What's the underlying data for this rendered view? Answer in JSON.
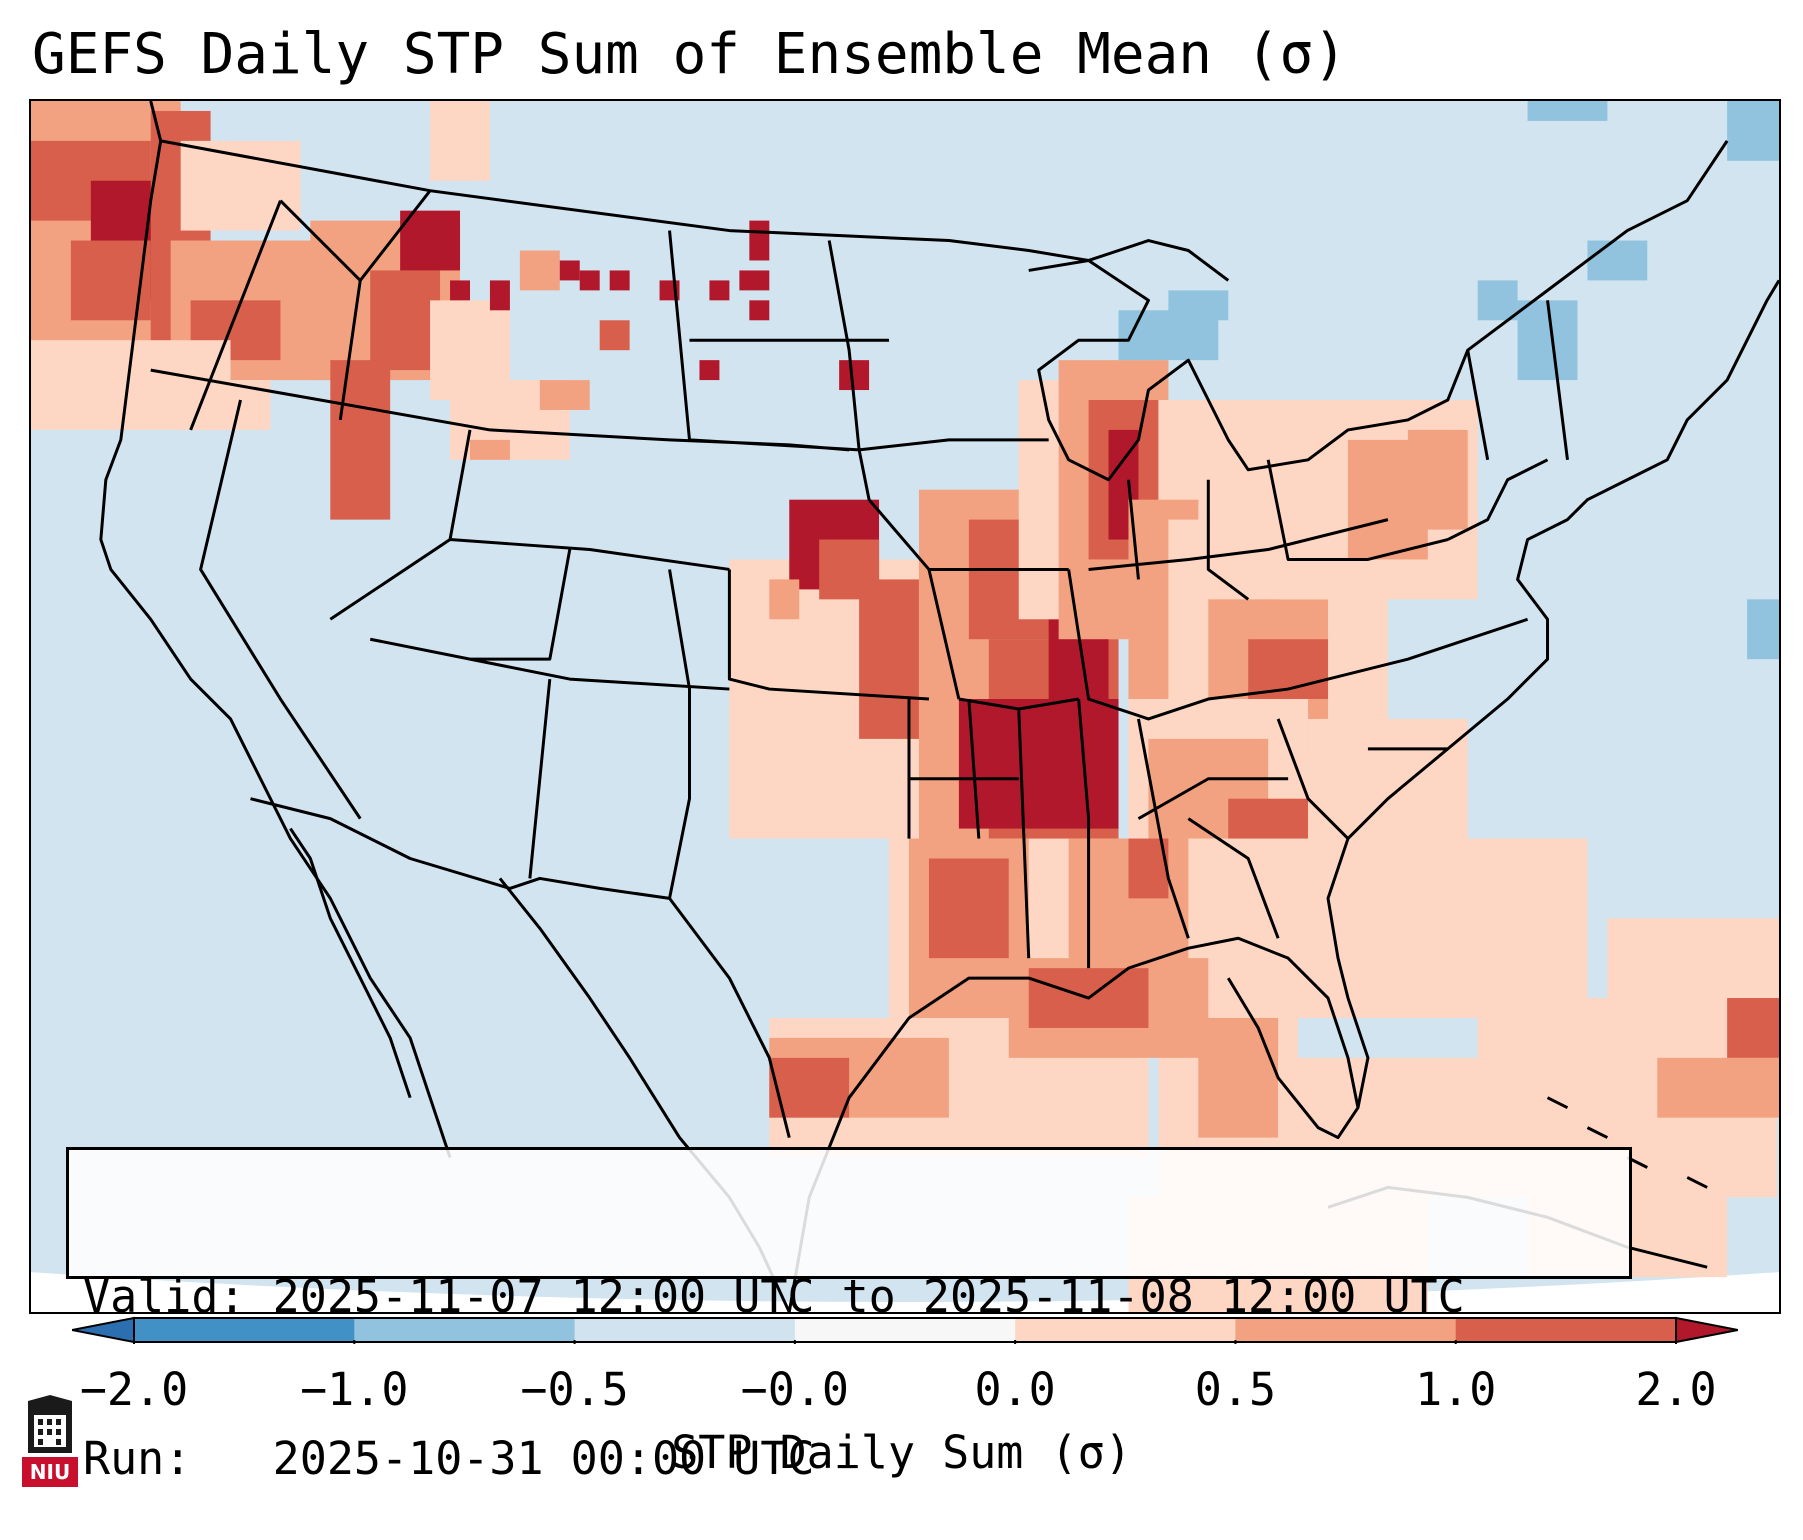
{
  "title": "GEFS Daily STP Sum of Ensemble Mean (σ)",
  "info": {
    "valid_label": "Valid:",
    "valid_value": "2025-11-07 12:00 UTC to 2025-11-08 12:00 UTC",
    "run_label": "Run:",
    "run_value": "2025-10-31 00:00 UTC"
  },
  "colorbar": {
    "label": "STP Daily Sum (σ)",
    "ticks": [
      "−2.0",
      "−1.0",
      "−0.5",
      "−0.0",
      "0.0",
      "0.5",
      "1.0",
      "2.0"
    ],
    "bins": [
      {
        "range": "below -2.0",
        "color": "#2b6fb0"
      },
      {
        "range": "-2.0 to -1.0",
        "color": "#4191c6"
      },
      {
        "range": "-1.0 to -0.5",
        "color": "#91c3df"
      },
      {
        "range": "-0.5 to -0.0",
        "color": "#d0e3ef"
      },
      {
        "range": "-0.0 to 0.0",
        "color": "#f7f7f7"
      },
      {
        "range": "0.0 to 0.5",
        "color": "#fdd7c3"
      },
      {
        "range": "0.5 to 1.0",
        "color": "#f2a281"
      },
      {
        "range": "1.0 to 2.0",
        "color": "#d75f4c"
      },
      {
        "range": "above 2.0",
        "color": "#b2182b"
      }
    ]
  },
  "map": {
    "region": "Continental United States",
    "background_color": "#d1e4f0",
    "outside_color": "#ffffff"
  },
  "logo": {
    "text": "NIU",
    "color": "#c8102e"
  }
}
